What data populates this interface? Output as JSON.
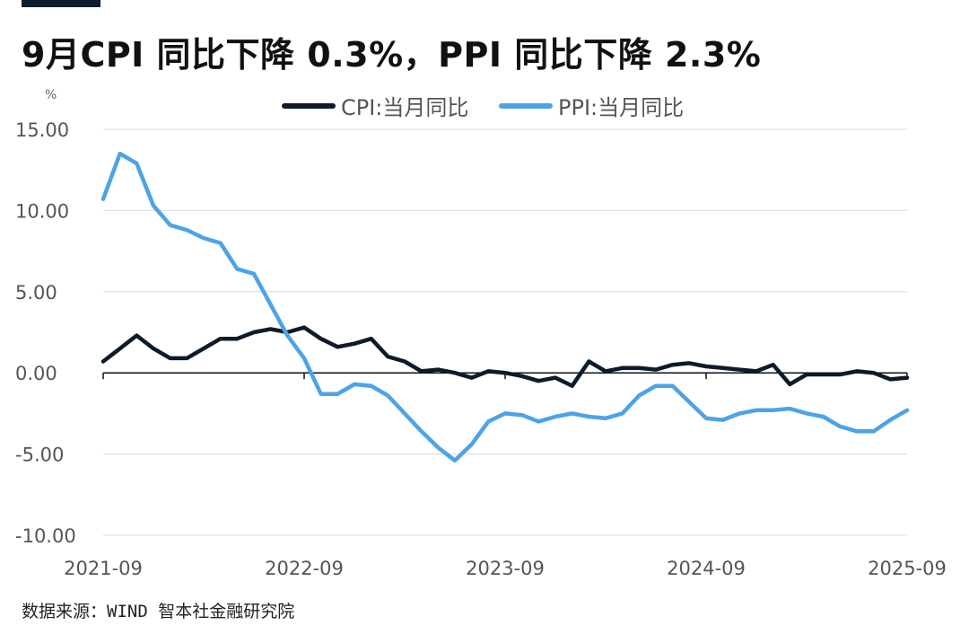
{
  "header": {
    "title": "9月CPI 同比下降 0.3%，PPI 同比下降 2.3%"
  },
  "footer": {
    "source": "数据来源：WIND 智本社金融研究院"
  },
  "colors": {
    "accent_bar": "#0d1b2a",
    "cpi_line": "#0d1b2a",
    "ppi_line": "#4da3e6",
    "grid": "#d9d9d9"
  },
  "chart_data": {
    "type": "line",
    "title": "9月CPI 同比下降 0.3%，PPI 同比下降 2.3%",
    "ylabel": "%",
    "xlabel": "",
    "ylim": [
      -10,
      15
    ],
    "yticks": [
      "15.00",
      "10.00",
      "5.00",
      "0.00",
      "-5.00",
      "-10.00"
    ],
    "ytick_values": [
      15,
      10,
      5,
      0,
      -5,
      -10
    ],
    "xticks": [
      "2021-09",
      "2022-09",
      "2023-09",
      "2024-09",
      "2025-09"
    ],
    "grid": true,
    "legend_position": "top-center",
    "x": [
      "2021-09",
      "2021-10",
      "2021-11",
      "2021-12",
      "2022-01",
      "2022-02",
      "2022-03",
      "2022-04",
      "2022-05",
      "2022-06",
      "2022-07",
      "2022-08",
      "2022-09",
      "2022-10",
      "2022-11",
      "2022-12",
      "2023-01",
      "2023-02",
      "2023-03",
      "2023-04",
      "2023-05",
      "2023-06",
      "2023-07",
      "2023-08",
      "2023-09",
      "2023-10",
      "2023-11",
      "2023-12",
      "2024-01",
      "2024-02",
      "2024-03",
      "2024-04",
      "2024-05",
      "2024-06",
      "2024-07",
      "2024-08",
      "2024-09",
      "2024-10",
      "2024-11",
      "2024-12",
      "2025-01",
      "2025-02",
      "2025-03",
      "2025-04",
      "2025-05",
      "2025-06",
      "2025-07",
      "2025-08",
      "2025-09"
    ],
    "series": [
      {
        "name": "CPI:当月同比",
        "color": "#0d1b2a",
        "values": [
          0.7,
          1.5,
          2.3,
          1.5,
          0.9,
          0.9,
          1.5,
          2.1,
          2.1,
          2.5,
          2.7,
          2.5,
          2.8,
          2.1,
          1.6,
          1.8,
          2.1,
          1.0,
          0.7,
          0.1,
          0.2,
          0.0,
          -0.3,
          0.1,
          0.0,
          -0.2,
          -0.5,
          -0.3,
          -0.8,
          0.7,
          0.1,
          0.3,
          0.3,
          0.2,
          0.5,
          0.6,
          0.4,
          0.3,
          0.2,
          0.1,
          0.5,
          -0.7,
          -0.1,
          -0.1,
          -0.1,
          0.1,
          0.0,
          -0.4,
          -0.3
        ]
      },
      {
        "name": "PPI:当月同比",
        "color": "#4da3e6",
        "values": [
          10.7,
          13.5,
          12.9,
          10.3,
          9.1,
          8.8,
          8.3,
          8.0,
          6.4,
          6.1,
          4.2,
          2.3,
          0.9,
          -1.3,
          -1.3,
          -0.7,
          -0.8,
          -1.4,
          -2.5,
          -3.6,
          -4.6,
          -5.4,
          -4.4,
          -3.0,
          -2.5,
          -2.6,
          -3.0,
          -2.7,
          -2.5,
          -2.7,
          -2.8,
          -2.5,
          -1.4,
          -0.8,
          -0.8,
          -1.8,
          -2.8,
          -2.9,
          -2.5,
          -2.3,
          -2.3,
          -2.2,
          -2.5,
          -2.7,
          -3.3,
          -3.6,
          -3.6,
          -2.9,
          -2.3
        ]
      }
    ]
  }
}
